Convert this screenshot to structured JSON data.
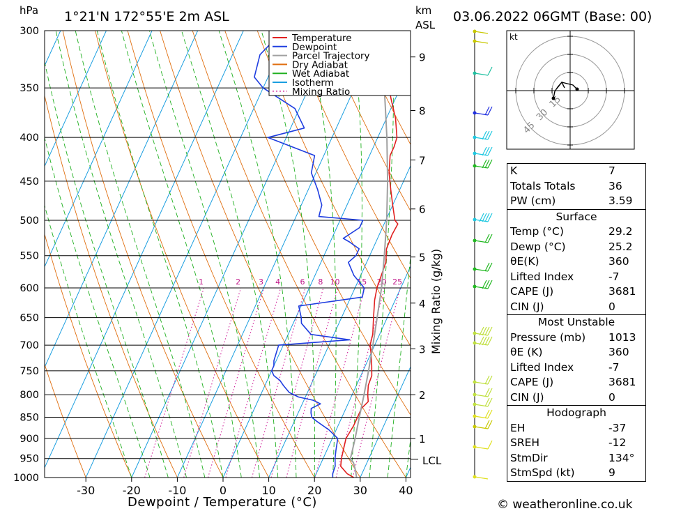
{
  "header": {
    "pressure_unit": "hPa",
    "location": "1°21'N  172°55'E  2m  ASL",
    "km_label": "km",
    "asl_label": "ASL",
    "datetime": "03.06.2022  06GMT  (Base: 00)",
    "copyright": "© weatheronline.co.uk"
  },
  "chart_data": {
    "type": "line",
    "title": "",
    "xlabel": "Dewpoint / Temperature (°C)",
    "ylabel": "hPa",
    "secondary_ylabel": "Mixing Ratio (g/kg)",
    "xlim": [
      -40,
      40
    ],
    "ylim": [
      1000,
      300
    ],
    "y_scale": "log",
    "x_ticks": [
      -30,
      -20,
      -10,
      0,
      10,
      20,
      30,
      40
    ],
    "pressure_levels": [
      300,
      350,
      400,
      450,
      500,
      550,
      600,
      650,
      700,
      750,
      800,
      850,
      900,
      950,
      1000
    ],
    "km_ticks": [
      {
        "label": "1",
        "p": 900
      },
      {
        "label": "2",
        "p": 800
      },
      {
        "label": "3",
        "p": 707
      },
      {
        "label": "4",
        "p": 625
      },
      {
        "label": "5",
        "p": 552
      },
      {
        "label": "6",
        "p": 485
      },
      {
        "label": "7",
        "p": 425
      },
      {
        "label": "8",
        "p": 372
      },
      {
        "label": "9",
        "p": 322
      }
    ],
    "lcl": {
      "label": "LCL",
      "p": 952
    },
    "mixing_ratio_labels": [
      "1",
      "2",
      "3",
      "4",
      "6",
      "8",
      "10",
      "15",
      "20",
      "25"
    ],
    "legend": {
      "placement": "top-right",
      "entries": [
        {
          "name": "Temperature",
          "color": "#e02020",
          "style": "solid"
        },
        {
          "name": "Dewpoint",
          "color": "#1f3ee0",
          "style": "solid"
        },
        {
          "name": "Parcel Trajectory",
          "color": "#a0a0a0",
          "style": "solid"
        },
        {
          "name": "Dry Adiabat",
          "color": "#e06f10",
          "style": "solid"
        },
        {
          "name": "Wet Adiabat",
          "color": "#20b020",
          "style": "solid"
        },
        {
          "name": "Isotherm",
          "color": "#1a9ee0",
          "style": "solid"
        },
        {
          "name": "Mixing Ratio",
          "color": "#d0209a",
          "style": "dotted"
        }
      ]
    },
    "series": [
      {
        "name": "Temperature",
        "color": "#e02020",
        "points": [
          [
            1000,
            28.6
          ],
          [
            990,
            26.8
          ],
          [
            970,
            24.6
          ],
          [
            950,
            24.0
          ],
          [
            930,
            23.6
          ],
          [
            900,
            23.0
          ],
          [
            870,
            23.4
          ],
          [
            850,
            23.4
          ],
          [
            830,
            23.4
          ],
          [
            815,
            24.2
          ],
          [
            800,
            23.4
          ],
          [
            780,
            22.6
          ],
          [
            760,
            22.4
          ],
          [
            740,
            21.4
          ],
          [
            720,
            20.3
          ],
          [
            700,
            19.0
          ],
          [
            680,
            18.5
          ],
          [
            650,
            17.0
          ],
          [
            620,
            15.5
          ],
          [
            600,
            14.8
          ],
          [
            580,
            14.5
          ],
          [
            560,
            14.2
          ],
          [
            540,
            13.0
          ],
          [
            520,
            12.8
          ],
          [
            505,
            13.0
          ],
          [
            500,
            12.0
          ],
          [
            480,
            10.0
          ],
          [
            460,
            8.0
          ],
          [
            440,
            6.0
          ],
          [
            420,
            4.5
          ],
          [
            410,
            4.5
          ],
          [
            400,
            4.2
          ],
          [
            380,
            2.0
          ],
          [
            360,
            -1.0
          ],
          [
            340,
            -4.0
          ],
          [
            320,
            -8.0
          ],
          [
            300,
            -11.0
          ]
        ]
      },
      {
        "name": "Dewpoint",
        "color": "#1f3ee0",
        "points": [
          [
            1000,
            24.0
          ],
          [
            990,
            23.6
          ],
          [
            970,
            23.4
          ],
          [
            950,
            22.6
          ],
          [
            930,
            22.0
          ],
          [
            900,
            21.2
          ],
          [
            880,
            18.5
          ],
          [
            860,
            15.0
          ],
          [
            850,
            13.4
          ],
          [
            840,
            12.8
          ],
          [
            830,
            12.4
          ],
          [
            820,
            14.0
          ],
          [
            812,
            12.0
          ],
          [
            805,
            8.5
          ],
          [
            795,
            6.0
          ],
          [
            780,
            4.0
          ],
          [
            770,
            2.8
          ],
          [
            760,
            1.0
          ],
          [
            750,
            0.0
          ],
          [
            740,
            0.0
          ],
          [
            730,
            -0.5
          ],
          [
            700,
            -1.0
          ],
          [
            690,
            14.0
          ],
          [
            680,
            5.0
          ],
          [
            660,
            1.8
          ],
          [
            650,
            1.2
          ],
          [
            630,
            -0.5
          ],
          [
            615,
            12.5
          ],
          [
            600,
            12.0
          ],
          [
            580,
            8.5
          ],
          [
            560,
            6.0
          ],
          [
            550,
            7.0
          ],
          [
            540,
            7.0
          ],
          [
            530,
            4.2
          ],
          [
            525,
            2.5
          ],
          [
            510,
            5.0
          ],
          [
            500,
            5.0
          ],
          [
            495,
            -5.0
          ],
          [
            480,
            -5.5
          ],
          [
            460,
            -8.0
          ],
          [
            440,
            -11.0
          ],
          [
            420,
            -12.0
          ],
          [
            400,
            -24.0
          ],
          [
            390,
            -17.0
          ],
          [
            370,
            -21.0
          ],
          [
            350,
            -30.0
          ],
          [
            340,
            -33.0
          ],
          [
            320,
            -34.0
          ],
          [
            305,
            -32.0
          ],
          [
            300,
            -27.0
          ]
        ]
      },
      {
        "name": "Parcel Trajectory",
        "color": "#a0a0a0",
        "points": [
          [
            1000,
            29.2
          ],
          [
            980,
            28.2
          ],
          [
            960,
            27.0
          ],
          [
            952,
            26.0
          ],
          [
            930,
            25.6
          ],
          [
            900,
            25.0
          ],
          [
            850,
            23.8
          ],
          [
            800,
            22.6
          ],
          [
            750,
            21.2
          ],
          [
            700,
            19.6
          ],
          [
            650,
            17.8
          ],
          [
            600,
            15.8
          ],
          [
            550,
            13.2
          ],
          [
            500,
            10.2
          ],
          [
            450,
            6.5
          ],
          [
            400,
            2.0
          ],
          [
            350,
            -3.5
          ],
          [
            300,
            -10.5
          ]
        ]
      }
    ]
  },
  "wind": {
    "unit_label": "kt",
    "hodograph_rings": [
      "15",
      "30",
      "45"
    ]
  },
  "indices": {
    "k": {
      "label": "K",
      "value": "7"
    },
    "tt": {
      "label": "Totals Totals",
      "value": "36"
    },
    "pw": {
      "label": "PW (cm)",
      "value": "3.59"
    },
    "surface": {
      "title": "Surface",
      "rows": [
        {
          "label": "Temp (°C)",
          "value": "29.2"
        },
        {
          "label": "Dewp (°C)",
          "value": "25.2"
        },
        {
          "label": "θE(K)",
          "value": "360"
        },
        {
          "label": "Lifted Index",
          "value": "-7"
        },
        {
          "label": "CAPE (J)",
          "value": "3681"
        },
        {
          "label": "CIN (J)",
          "value": "0"
        }
      ]
    },
    "most_unstable": {
      "title": "Most Unstable",
      "rows": [
        {
          "label": "Pressure (mb)",
          "value": "1013"
        },
        {
          "label": "θE (K)",
          "value": "360"
        },
        {
          "label": "Lifted Index",
          "value": "-7"
        },
        {
          "label": "CAPE (J)",
          "value": "3681"
        },
        {
          "label": "CIN (J)",
          "value": "0"
        }
      ]
    },
    "hodograph": {
      "title": "Hodograph",
      "rows": [
        {
          "label": "EH",
          "value": "-37"
        },
        {
          "label": "SREH",
          "value": "-12"
        },
        {
          "label": "StmDir",
          "value": "134°"
        },
        {
          "label": "StmSpd (kt)",
          "value": "9"
        }
      ]
    }
  }
}
